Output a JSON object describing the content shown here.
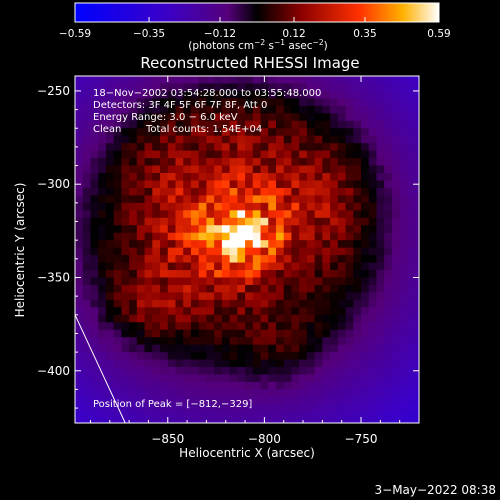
{
  "chart_data": {
    "type": "heatmap",
    "title": "Reconstructed RHESSI Image",
    "xlabel": "Heliocentric X (arcsec)",
    "ylabel": "Heliocentric Y (arcsec)",
    "xlim": [
      -898,
      -720
    ],
    "ylim": [
      -428,
      -242
    ],
    "x_ticks": [
      -850,
      -800,
      -750
    ],
    "x_tick_labels": [
      "−850",
      "−800",
      "−750"
    ],
    "y_ticks": [
      -250,
      -300,
      -350,
      -400
    ],
    "y_tick_labels": [
      "−250",
      "−300",
      "−350",
      "−400"
    ],
    "colorbar": {
      "min": -0.59,
      "max": 0.59,
      "ticks": [
        -0.59,
        -0.35,
        -0.12,
        0.12,
        0.35,
        0.59
      ],
      "tick_labels": [
        "−0.59",
        "−0.35",
        "−0.12",
        "0.12",
        "0.35",
        "0.59"
      ],
      "unit_parts": {
        "a": "(photons cm",
        "a_sup": "−2",
        "b": " s",
        "b_sup": "−1",
        "c": " asec",
        "c_sup": "−2",
        "d": ")"
      }
    },
    "annotations": {
      "time_range": "18−Nov−2002 03:54:28.000 to 03:55:48.000",
      "detectors": "Detectors: 3F 4F 5F 6F 7F 8F, Att 0",
      "energy": "Energy Range: 3.0 − 6.0 keV",
      "clean_label": "Clean",
      "total_counts": "Total counts: 1.54E+04",
      "peak": "Position of Peak = [−812,−329]"
    },
    "peak": {
      "x": -812,
      "y": -329,
      "value": 0.59
    },
    "sources": [
      {
        "x": -812,
        "y": -329,
        "sx": 14,
        "sy": 12,
        "amp": 0.35
      },
      {
        "x": -820,
        "y": -315,
        "sx": 35,
        "sy": 30,
        "amp": 0.22
      },
      {
        "x": -835,
        "y": -340,
        "sx": 30,
        "sy": 28,
        "amp": 0.14
      },
      {
        "x": -790,
        "y": -300,
        "sx": 25,
        "sy": 25,
        "amp": 0.12
      },
      {
        "x": -855,
        "y": -285,
        "sx": 18,
        "sy": 22,
        "amp": 0.08
      },
      {
        "x": -860,
        "y": -365,
        "sx": 16,
        "sy": 14,
        "amp": 0.12
      },
      {
        "x": -800,
        "y": -375,
        "sx": 22,
        "sy": 16,
        "amp": 0.09
      },
      {
        "x": -765,
        "y": -320,
        "sx": 16,
        "sy": 30,
        "amp": 0.1
      },
      {
        "x": -815,
        "y": -265,
        "sx": 22,
        "sy": 12,
        "amp": 0.08
      },
      {
        "x": -790,
        "y": -395,
        "sx": 12,
        "sy": 12,
        "amp": 0.05
      }
    ],
    "limb_line": {
      "x": [
        -898,
        -872
      ],
      "y": [
        -370,
        -428
      ]
    }
  },
  "footer": {
    "date_stamp": "3−May−2022 08:38"
  }
}
